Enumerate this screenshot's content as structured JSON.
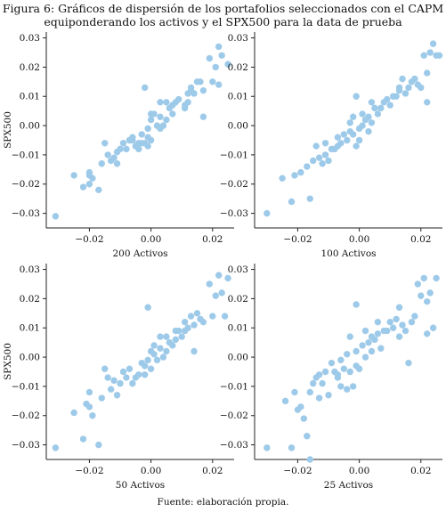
{
  "figure": {
    "title_line1_a": "Figura 6: Gráficos de dispersión de los portafolios seleccionados con el ",
    "title_line1_b": "CAPM",
    "title_line2_a": "equiponderando los activos y el ",
    "title_line2_b": "SPX500",
    "title_line2_c": " para la data de prueba",
    "source": "Fuente: elaboración propia."
  },
  "style": {
    "point_color": "#9ecae9",
    "axis_color": "#222222"
  },
  "chart_data": [
    {
      "type": "scatter",
      "xlabel": "200 Activos",
      "ylabel": "SPX500",
      "xlim": [
        -0.034,
        0.027
      ],
      "ylim": [
        -0.035,
        0.032
      ],
      "xticks": [
        -0.02,
        0.0,
        0.02
      ],
      "xtick_labels": [
        "−0.02",
        "0.00",
        "0.02"
      ],
      "yticks": [
        -0.03,
        -0.02,
        -0.01,
        0.0,
        0.01,
        0.02,
        0.03
      ],
      "ytick_labels": [
        "−0.03",
        "−0.02",
        "−0.01",
        "0.00",
        "0.01",
        "0.02",
        "0.03"
      ],
      "points": [
        [
          -0.031,
          -0.031
        ],
        [
          -0.025,
          -0.017
        ],
        [
          -0.022,
          -0.021
        ],
        [
          -0.02,
          -0.017
        ],
        [
          -0.02,
          -0.016
        ],
        [
          -0.02,
          -0.02
        ],
        [
          -0.019,
          -0.018
        ],
        [
          -0.017,
          -0.022
        ],
        [
          -0.016,
          -0.013
        ],
        [
          -0.015,
          -0.006
        ],
        [
          -0.014,
          -0.01
        ],
        [
          -0.013,
          -0.012
        ],
        [
          -0.012,
          -0.011
        ],
        [
          -0.011,
          -0.013
        ],
        [
          -0.011,
          -0.009
        ],
        [
          -0.01,
          -0.008
        ],
        [
          -0.009,
          -0.006
        ],
        [
          -0.008,
          -0.008
        ],
        [
          -0.007,
          -0.005
        ],
        [
          -0.006,
          -0.005
        ],
        [
          -0.006,
          -0.004
        ],
        [
          -0.005,
          -0.007
        ],
        [
          -0.004,
          -0.008
        ],
        [
          -0.004,
          -0.006
        ],
        [
          -0.003,
          -0.006
        ],
        [
          -0.003,
          -0.003
        ],
        [
          -0.002,
          -0.006
        ],
        [
          -0.001,
          -0.007
        ],
        [
          -0.001,
          -0.004
        ],
        [
          0.0,
          -0.005
        ],
        [
          -0.001,
          -0.001
        ],
        [
          0.0,
          0.002
        ],
        [
          0.0,
          0.004
        ],
        [
          0.001,
          0.004
        ],
        [
          0.002,
          0.0
        ],
        [
          0.003,
          0.003
        ],
        [
          0.003,
          -0.001
        ],
        [
          0.004,
          0.0
        ],
        [
          0.005,
          0.002
        ],
        [
          0.005,
          0.008
        ],
        [
          0.006,
          0.006
        ],
        [
          0.007,
          0.004
        ],
        [
          0.007,
          0.007
        ],
        [
          0.008,
          0.008
        ],
        [
          0.009,
          0.009
        ],
        [
          0.011,
          0.007
        ],
        [
          0.011,
          0.006
        ],
        [
          0.012,
          0.008
        ],
        [
          0.012,
          0.011
        ],
        [
          0.013,
          0.013
        ],
        [
          0.013,
          0.012
        ],
        [
          0.014,
          0.011
        ],
        [
          0.015,
          0.015
        ],
        [
          0.016,
          0.015
        ],
        [
          0.017,
          0.012
        ],
        [
          0.019,
          0.023
        ],
        [
          0.02,
          0.015
        ],
        [
          0.021,
          0.02
        ],
        [
          0.022,
          0.014
        ],
        [
          0.022,
          0.027
        ],
        [
          0.023,
          0.024
        ],
        [
          0.025,
          0.021
        ],
        [
          -0.002,
          0.013
        ],
        [
          0.003,
          0.008
        ],
        [
          0.017,
          0.003
        ]
      ]
    },
    {
      "type": "scatter",
      "xlabel": "100 Activos",
      "ylabel": "",
      "xlim": [
        -0.034,
        0.027
      ],
      "ylim": [
        -0.035,
        0.032
      ],
      "xticks": [
        -0.02,
        0.0,
        0.02
      ],
      "xtick_labels": [
        "−0.02",
        "0.00",
        "0.02"
      ],
      "yticks": [
        -0.03,
        -0.02,
        -0.01,
        0.0,
        0.01,
        0.02,
        0.03
      ],
      "ytick_labels": [
        "−0.03",
        "−0.02",
        "−0.01",
        "0.00",
        "0.01",
        "0.02",
        "0.03"
      ],
      "points": [
        [
          -0.03,
          -0.03
        ],
        [
          -0.025,
          -0.018
        ],
        [
          -0.022,
          -0.026
        ],
        [
          -0.021,
          -0.017
        ],
        [
          -0.019,
          -0.016
        ],
        [
          -0.017,
          -0.014
        ],
        [
          -0.016,
          -0.025
        ],
        [
          -0.015,
          -0.012
        ],
        [
          -0.014,
          -0.007
        ],
        [
          -0.013,
          -0.011
        ],
        [
          -0.012,
          -0.013
        ],
        [
          -0.011,
          -0.01
        ],
        [
          -0.011,
          -0.006
        ],
        [
          -0.01,
          -0.012
        ],
        [
          -0.009,
          -0.008
        ],
        [
          -0.008,
          -0.008
        ],
        [
          -0.007,
          -0.004
        ],
        [
          -0.007,
          -0.007
        ],
        [
          -0.006,
          -0.006
        ],
        [
          -0.005,
          -0.003
        ],
        [
          -0.004,
          -0.005
        ],
        [
          -0.003,
          -0.002
        ],
        [
          -0.003,
          0.001
        ],
        [
          -0.002,
          -0.003
        ],
        [
          -0.002,
          0.003
        ],
        [
          -0.001,
          -0.007
        ],
        [
          0.0,
          -0.005
        ],
        [
          0.0,
          -0.001
        ],
        [
          0.001,
          0.004
        ],
        [
          0.001,
          0.0
        ],
        [
          0.002,
          0.002
        ],
        [
          0.003,
          0.003
        ],
        [
          0.003,
          -0.002
        ],
        [
          0.004,
          0.001
        ],
        [
          0.005,
          0.006
        ],
        [
          0.006,
          0.004
        ],
        [
          0.007,
          0.006
        ],
        [
          0.008,
          0.008
        ],
        [
          0.009,
          0.009
        ],
        [
          0.01,
          0.007
        ],
        [
          0.011,
          0.01
        ],
        [
          0.012,
          0.01
        ],
        [
          0.013,
          0.012
        ],
        [
          0.013,
          0.013
        ],
        [
          0.014,
          0.016
        ],
        [
          0.015,
          0.011
        ],
        [
          0.016,
          0.013
        ],
        [
          0.017,
          0.015
        ],
        [
          0.018,
          0.016
        ],
        [
          0.019,
          0.014
        ],
        [
          0.02,
          0.013
        ],
        [
          0.021,
          0.024
        ],
        [
          0.022,
          0.018
        ],
        [
          0.023,
          0.025
        ],
        [
          0.024,
          0.028
        ],
        [
          0.025,
          0.024
        ],
        [
          0.026,
          0.024
        ],
        [
          0.022,
          0.008
        ],
        [
          -0.001,
          0.01
        ],
        [
          0.004,
          0.008
        ]
      ]
    },
    {
      "type": "scatter",
      "xlabel": "50 Activos",
      "ylabel": "SPX500",
      "xlim": [
        -0.034,
        0.027
      ],
      "ylim": [
        -0.035,
        0.032
      ],
      "xticks": [
        -0.02,
        0.0,
        0.02
      ],
      "xtick_labels": [
        "−0.02",
        "0.00",
        "0.02"
      ],
      "yticks": [
        -0.03,
        -0.02,
        -0.01,
        0.0,
        0.01,
        0.02,
        0.03
      ],
      "ytick_labels": [
        "−0.03",
        "−0.02",
        "−0.01",
        "0.00",
        "0.01",
        "0.02",
        "0.03"
      ],
      "points": [
        [
          -0.031,
          -0.031
        ],
        [
          -0.025,
          -0.019
        ],
        [
          -0.022,
          -0.028
        ],
        [
          -0.021,
          -0.016
        ],
        [
          -0.02,
          -0.017
        ],
        [
          -0.02,
          -0.012
        ],
        [
          -0.019,
          -0.02
        ],
        [
          -0.017,
          -0.03
        ],
        [
          -0.016,
          -0.014
        ],
        [
          -0.015,
          -0.004
        ],
        [
          -0.014,
          -0.007
        ],
        [
          -0.013,
          -0.011
        ],
        [
          -0.012,
          -0.008
        ],
        [
          -0.011,
          -0.013
        ],
        [
          -0.01,
          -0.009
        ],
        [
          -0.009,
          -0.005
        ],
        [
          -0.008,
          -0.007
        ],
        [
          -0.007,
          -0.004
        ],
        [
          -0.006,
          -0.009
        ],
        [
          -0.005,
          -0.007
        ],
        [
          -0.004,
          -0.006
        ],
        [
          -0.003,
          -0.002
        ],
        [
          -0.002,
          -0.006
        ],
        [
          -0.002,
          -0.003
        ],
        [
          -0.001,
          -0.001
        ],
        [
          0.0,
          0.002
        ],
        [
          0.0,
          -0.004
        ],
        [
          0.001,
          0.004
        ],
        [
          0.001,
          0.001
        ],
        [
          0.002,
          -0.001
        ],
        [
          0.003,
          0.003
        ],
        [
          0.004,
          0.0
        ],
        [
          0.005,
          0.007
        ],
        [
          0.005,
          0.002
        ],
        [
          0.006,
          0.005
        ],
        [
          0.007,
          0.004
        ],
        [
          0.008,
          0.006
        ],
        [
          0.009,
          0.009
        ],
        [
          0.01,
          0.007
        ],
        [
          0.011,
          0.009
        ],
        [
          0.011,
          0.012
        ],
        [
          0.012,
          0.01
        ],
        [
          0.013,
          0.014
        ],
        [
          0.014,
          0.011
        ],
        [
          0.015,
          0.015
        ],
        [
          0.016,
          0.013
        ],
        [
          0.017,
          0.012
        ],
        [
          0.019,
          0.025
        ],
        [
          0.02,
          0.014
        ],
        [
          0.021,
          0.021
        ],
        [
          0.022,
          0.028
        ],
        [
          0.023,
          0.022
        ],
        [
          0.024,
          0.014
        ],
        [
          0.025,
          0.027
        ],
        [
          -0.001,
          0.017
        ],
        [
          0.003,
          0.007
        ],
        [
          0.014,
          0.002
        ],
        [
          0.008,
          0.009
        ]
      ]
    },
    {
      "type": "scatter",
      "xlabel": "25 Activos",
      "ylabel": "",
      "xlim": [
        -0.034,
        0.027
      ],
      "ylim": [
        -0.035,
        0.032
      ],
      "xticks": [
        -0.02,
        0.0,
        0.02
      ],
      "xtick_labels": [
        "−0.02",
        "0.00",
        "0.02"
      ],
      "yticks": [
        -0.03,
        -0.02,
        -0.01,
        0.0,
        0.01,
        0.02,
        0.03
      ],
      "ytick_labels": [
        "−0.03",
        "−0.02",
        "−0.01",
        "0.00",
        "0.01",
        "0.02",
        "0.03"
      ],
      "points": [
        [
          -0.03,
          -0.031
        ],
        [
          -0.024,
          -0.015
        ],
        [
          -0.022,
          -0.031
        ],
        [
          -0.021,
          -0.012
        ],
        [
          -0.02,
          -0.018
        ],
        [
          -0.019,
          -0.017
        ],
        [
          -0.018,
          -0.021
        ],
        [
          -0.017,
          -0.027
        ],
        [
          -0.016,
          -0.035
        ],
        [
          -0.016,
          -0.012
        ],
        [
          -0.015,
          -0.009
        ],
        [
          -0.014,
          -0.007
        ],
        [
          -0.013,
          -0.014
        ],
        [
          -0.013,
          -0.006
        ],
        [
          -0.012,
          -0.009
        ],
        [
          -0.011,
          -0.005
        ],
        [
          -0.01,
          -0.013
        ],
        [
          -0.009,
          -0.002
        ],
        [
          -0.008,
          -0.005
        ],
        [
          -0.007,
          -0.007
        ],
        [
          -0.006,
          -0.001
        ],
        [
          -0.006,
          -0.01
        ],
        [
          -0.005,
          -0.004
        ],
        [
          -0.004,
          -0.011
        ],
        [
          -0.004,
          0.001
        ],
        [
          -0.003,
          -0.005
        ],
        [
          -0.002,
          -0.01
        ],
        [
          -0.001,
          -0.003
        ],
        [
          -0.001,
          0.002
        ],
        [
          0.0,
          -0.004
        ],
        [
          0.001,
          0.004
        ],
        [
          0.002,
          0.0
        ],
        [
          0.003,
          0.005
        ],
        [
          0.004,
          0.002
        ],
        [
          0.004,
          0.007
        ],
        [
          0.005,
          0.006
        ],
        [
          0.006,
          0.008
        ],
        [
          0.007,
          0.003
        ],
        [
          0.008,
          0.009
        ],
        [
          0.009,
          0.009
        ],
        [
          0.01,
          0.012
        ],
        [
          0.011,
          0.01
        ],
        [
          0.012,
          0.013
        ],
        [
          0.013,
          0.017
        ],
        [
          0.013,
          0.007
        ],
        [
          0.014,
          0.011
        ],
        [
          0.015,
          0.009
        ],
        [
          0.016,
          -0.002
        ],
        [
          0.017,
          0.012
        ],
        [
          0.018,
          0.014
        ],
        [
          0.019,
          0.025
        ],
        [
          0.02,
          0.021
        ],
        [
          0.021,
          0.027
        ],
        [
          0.022,
          0.019
        ],
        [
          0.023,
          0.022
        ],
        [
          0.024,
          0.01
        ],
        [
          0.025,
          0.027
        ],
        [
          -0.001,
          0.018
        ],
        [
          0.002,
          0.009
        ],
        [
          0.022,
          0.008
        ],
        [
          -0.007,
          -0.006
        ],
        [
          -0.003,
          0.007
        ],
        [
          0.006,
          0.012
        ]
      ]
    }
  ]
}
